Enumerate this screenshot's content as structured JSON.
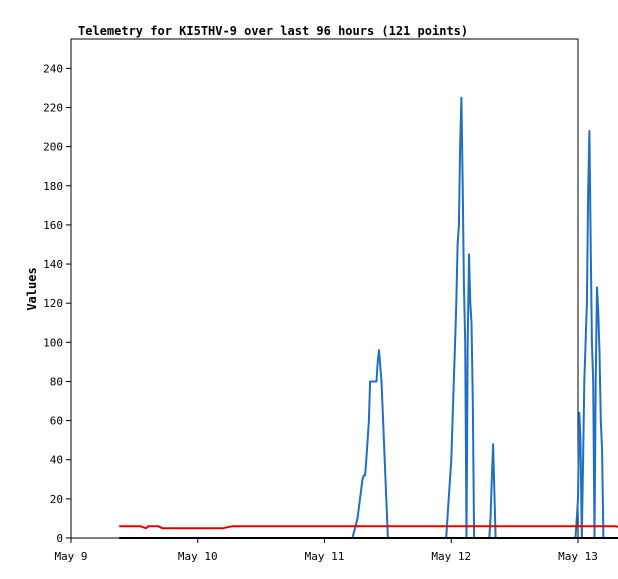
{
  "chart_data": {
    "type": "line",
    "title": "Telemetry for KI5THV-9 over last 96 hours (121 points)",
    "xlabel": "",
    "ylabel": "Values",
    "xlim": [
      "May 9",
      "May 13"
    ],
    "ylim": [
      0,
      255
    ],
    "grid": false,
    "legend": "none",
    "x_ticks": [
      "May 9",
      "May 10",
      "May 11",
      "May 12",
      "May 13"
    ],
    "y_ticks": [
      0,
      20,
      40,
      60,
      80,
      100,
      120,
      140,
      160,
      180,
      200,
      220,
      240
    ],
    "series": [
      {
        "color": "#1f6fc4",
        "x": [
          0.38,
          1.18,
          1.27,
          1.29,
          1.33,
          1.36,
          1.39,
          1.4,
          1.41,
          1.45,
          1.46,
          1.49,
          1.52,
          1.56,
          1.58,
          1.59,
          1.64,
          1.66,
          1.69,
          1.7,
          1.71,
          1.73,
          1.74,
          1.76,
          1.78,
          1.8,
          2.0,
          2.2,
          2.22,
          2.26,
          2.3,
          2.31,
          2.32,
          2.33,
          2.35,
          2.36,
          2.37,
          2.38,
          2.4,
          2.42,
          2.43,
          2.45,
          2.5,
          2.53,
          2.55,
          2.56,
          2.58,
          3.0,
          3.28,
          3.31,
          3.32,
          3.33,
          3.36,
          3.39,
          3.4,
          3.41,
          3.42,
          3.43,
          3.44,
          3.45,
          3.46,
          3.48,
          3.5,
          3.53,
          3.56,
          3.6,
          3.62,
          3.66,
          3.68,
          3.7,
          3.75,
          3.8
        ],
        "values": [
          0,
          0,
          0,
          0,
          0,
          0,
          0,
          0,
          0,
          0,
          0,
          0,
          0,
          0,
          0,
          0,
          0,
          0,
          0,
          0,
          0,
          0,
          0,
          0,
          0,
          0,
          0,
          0,
          10,
          20,
          30,
          32,
          40,
          60,
          80,
          80,
          80,
          80,
          88,
          96,
          80,
          40,
          0,
          0,
          0,
          0,
          0,
          0,
          0,
          0,
          0,
          0,
          0,
          0,
          0,
          0,
          0,
          0,
          0,
          0,
          0,
          0,
          0,
          0,
          0,
          0,
          0,
          0,
          0,
          0,
          0,
          0
        ]
      },
      {
        "color": "#1f6fc4",
        "x": [
          2.58,
          3.0,
          3.05,
          3.1,
          3.12,
          3.14,
          3.15,
          3.16,
          3.17,
          3.18,
          3.2,
          3.21,
          3.22,
          3.23,
          3.24,
          3.25,
          3.26,
          3.28,
          3.3,
          3.31,
          3.32,
          3.33,
          3.34,
          3.36,
          3.38,
          3.4,
          3.6,
          3.63,
          3.65,
          3.66,
          3.67,
          3.68,
          3.7,
          3.71,
          3.72,
          3.73,
          3.74,
          3.75,
          3.76,
          3.77,
          3.78,
          3.8,
          3.82,
          3.85
        ],
        "values": [
          0,
          0,
          0,
          0,
          0,
          0,
          0,
          0,
          0,
          0,
          0,
          0,
          0,
          0,
          0,
          0,
          0,
          0,
          0,
          0,
          0,
          0,
          0,
          0,
          0,
          0,
          0,
          0,
          0,
          0,
          0,
          0,
          0,
          0,
          0,
          0,
          0,
          0,
          0,
          0,
          0,
          0,
          0,
          0
        ]
      },
      {
        "color": "#1f6fc4",
        "x": [
          2.22,
          2.26,
          2.28,
          2.3,
          2.31,
          2.32,
          2.33,
          2.35,
          2.36,
          2.37,
          2.38,
          2.4,
          2.41,
          2.42,
          2.43,
          2.45,
          2.5,
          2.96,
          2.98,
          3.0,
          3.02,
          3.03,
          3.04,
          3.05,
          3.06,
          3.07,
          3.08,
          3.09,
          3.1,
          3.11,
          3.12,
          3.13,
          3.14,
          3.15,
          3.16,
          3.17,
          3.18,
          3.19,
          3.2,
          3.21,
          3.22,
          3.23,
          3.24,
          3.25,
          3.27,
          3.29,
          3.3,
          3.31,
          3.32,
          3.33,
          3.35,
          3.95,
          3.98,
          4.0,
          4.01,
          4.02,
          4.03,
          4.04,
          4.05,
          4.06,
          4.07,
          4.08,
          4.09,
          4.1,
          4.11,
          4.12,
          4.13,
          4.14,
          4.15,
          4.16,
          4.17,
          4.18,
          4.19,
          4.2,
          4.22,
          4.24,
          4.26,
          4.28,
          4.3,
          4.32,
          4.33,
          4.35
        ],
        "values": [
          0,
          10,
          20,
          30,
          32,
          32,
          40,
          60,
          80,
          80,
          80,
          80,
          80,
          90,
          96,
          80,
          0,
          0,
          20,
          40,
          80,
          100,
          120,
          150,
          160,
          200,
          225,
          180,
          130,
          100,
          0,
          100,
          145,
          120,
          110,
          70,
          0,
          0,
          0,
          0,
          0,
          0,
          0,
          0,
          0,
          0,
          0,
          10,
          30,
          48,
          0,
          0,
          0,
          20,
          64,
          50,
          0,
          40,
          80,
          100,
          120,
          175,
          208,
          150,
          100,
          80,
          0,
          80,
          128,
          115,
          95,
          60,
          45,
          0,
          0,
          0,
          0,
          0,
          0,
          0,
          0,
          0
        ]
      },
      {
        "color": "#e00000",
        "x": [
          0.38,
          0.55,
          0.59,
          0.61,
          0.65,
          0.69,
          0.72,
          0.74,
          0.8,
          1.0,
          1.1,
          1.2,
          1.27,
          1.35,
          1.6,
          2.0,
          2.5,
          3.0,
          3.5,
          4.0,
          4.3,
          4.36,
          4.38
        ],
        "values": [
          6,
          6,
          5,
          6,
          6,
          6,
          5,
          5,
          5,
          5,
          5,
          5,
          6,
          6,
          6,
          6,
          6,
          6,
          6,
          6,
          6,
          5,
          5
        ]
      },
      {
        "color": "#000000",
        "x": [
          0.38,
          4.38
        ],
        "values": [
          0,
          0
        ]
      }
    ]
  }
}
